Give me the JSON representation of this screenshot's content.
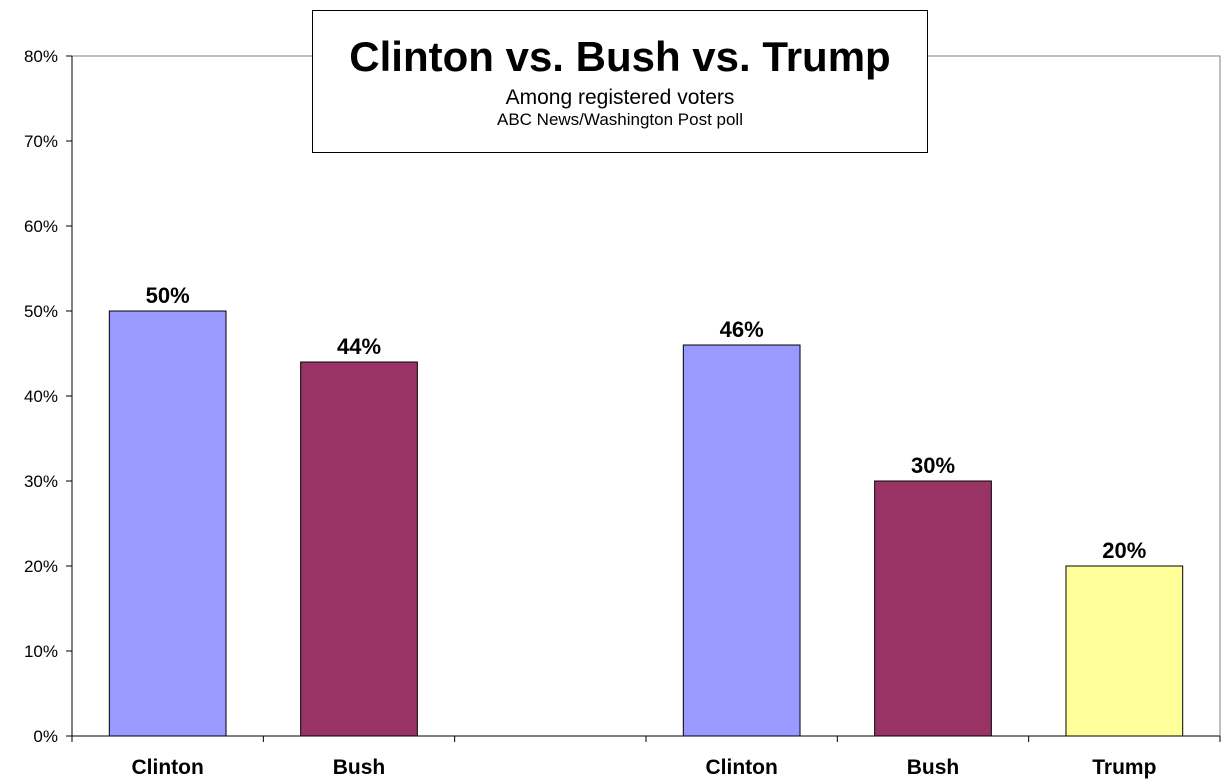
{
  "chart_data": {
    "type": "bar",
    "title": "Clinton vs. Bush vs. Trump",
    "subtitle": "Among registered voters",
    "source": "ABC News/Washington  Post poll",
    "ylim": [
      0,
      80
    ],
    "y_tick_labels": [
      "0%",
      "10%",
      "20%",
      "30%",
      "40%",
      "50%",
      "60%",
      "70%",
      "80%"
    ],
    "y_ticks": [
      0,
      10,
      20,
      30,
      40,
      50,
      60,
      70,
      80
    ],
    "grid": false,
    "categories": [
      "Clinton",
      "Bush",
      "",
      "Clinton",
      "Bush",
      "Trump"
    ],
    "values": [
      50,
      44,
      null,
      46,
      30,
      20
    ],
    "value_labels": [
      "50%",
      "44%",
      "",
      "46%",
      "30%",
      "20%"
    ],
    "bar_colors": [
      "#9999ff",
      "#993366",
      null,
      "#9999ff",
      "#993366",
      "#ffff99"
    ]
  }
}
